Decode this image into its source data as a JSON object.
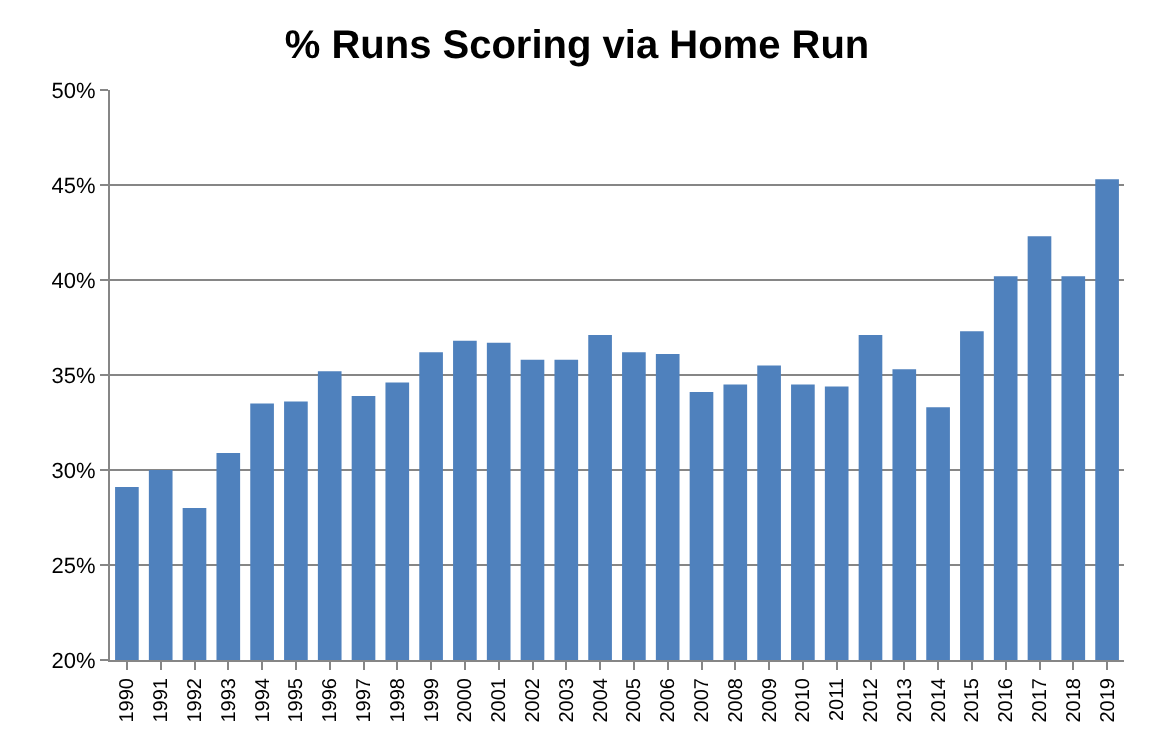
{
  "chart_data": {
    "type": "bar",
    "title": "% Runs Scoring via Home Run",
    "categories": [
      "1990",
      "1991",
      "1992",
      "1993",
      "1994",
      "1995",
      "1996",
      "1997",
      "1998",
      "1999",
      "2000",
      "2001",
      "2002",
      "2003",
      "2004",
      "2005",
      "2006",
      "2007",
      "2008",
      "2009",
      "2010",
      "2011",
      "2012",
      "2013",
      "2014",
      "2015",
      "2016",
      "2017",
      "2018",
      "2019"
    ],
    "values": [
      29.1,
      30.0,
      28.0,
      30.9,
      33.5,
      33.6,
      35.2,
      33.9,
      34.6,
      36.2,
      36.8,
      36.7,
      35.8,
      35.8,
      37.1,
      36.2,
      36.1,
      34.1,
      34.5,
      35.5,
      34.5,
      34.4,
      37.1,
      35.3,
      33.3,
      37.3,
      40.2,
      42.3,
      40.2,
      45.3
    ],
    "color": "#4f81bd",
    "ylim": [
      20,
      50
    ],
    "yticks": [
      {
        "value": 20,
        "label": "20%"
      },
      {
        "value": 25,
        "label": "25%"
      },
      {
        "value": 30,
        "label": "30%"
      },
      {
        "value": 35,
        "label": "35%"
      },
      {
        "value": 40,
        "label": "40%"
      },
      {
        "value": 45,
        "label": "45%"
      },
      {
        "value": 50,
        "label": "50%"
      }
    ],
    "grid": "y"
  }
}
